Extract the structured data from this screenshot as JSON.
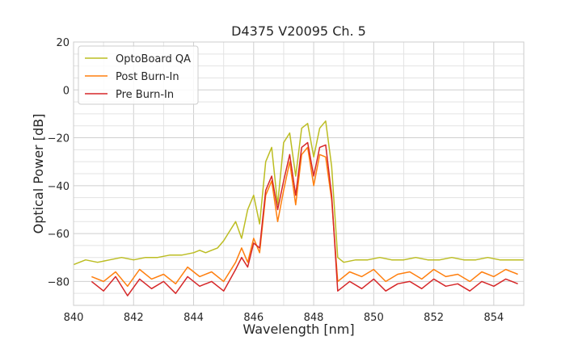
{
  "chart_data": {
    "type": "line",
    "title": "D4375 V20095 Ch. 5",
    "xlabel": "Wavelength [nm]",
    "ylabel": "Optical Power [dB]",
    "xlim": [
      840,
      855
    ],
    "ylim": [
      -90,
      20
    ],
    "xticks": [
      840,
      842,
      844,
      846,
      848,
      850,
      852,
      854
    ],
    "yticks": [
      -80,
      -60,
      -40,
      -20,
      0,
      20
    ],
    "xtick_labels": [
      "840",
      "842",
      "844",
      "846",
      "848",
      "850",
      "852",
      "854"
    ],
    "ytick_labels": [
      "−80",
      "−60",
      "−40",
      "−20",
      "0",
      "20"
    ],
    "grid": true,
    "legend_position": "top-left",
    "series": [
      {
        "name": "OptoBoard QA",
        "color": "#bcbd22",
        "x": [
          840.0,
          840.4,
          840.8,
          841.2,
          841.6,
          842.0,
          842.4,
          842.8,
          843.2,
          843.6,
          844.0,
          844.2,
          844.4,
          844.6,
          844.8,
          845.0,
          845.2,
          845.4,
          845.6,
          845.8,
          846.0,
          846.2,
          846.4,
          846.6,
          846.8,
          847.0,
          847.2,
          847.4,
          847.6,
          847.8,
          848.0,
          848.2,
          848.4,
          848.6,
          848.8,
          849.0,
          849.4,
          849.8,
          850.2,
          850.6,
          851.0,
          851.4,
          851.8,
          852.2,
          852.6,
          853.0,
          853.4,
          853.8,
          854.2,
          854.6,
          855.0
        ],
        "y": [
          -73,
          -71,
          -72,
          -71,
          -70,
          -71,
          -70,
          -70,
          -69,
          -69,
          -68,
          -67,
          -68,
          -67,
          -66,
          -63,
          -59,
          -55,
          -62,
          -50,
          -44,
          -56,
          -30,
          -24,
          -48,
          -22,
          -18,
          -36,
          -16,
          -14,
          -28,
          -16,
          -13,
          -32,
          -70,
          -72,
          -71,
          -71,
          -70,
          -71,
          -71,
          -70,
          -71,
          -71,
          -70,
          -71,
          -71,
          -70,
          -71,
          -71,
          -71
        ]
      },
      {
        "name": "Post Burn-In",
        "color": "#ff7f0e",
        "x": [
          840.6,
          841.0,
          841.4,
          841.8,
          842.2,
          842.6,
          843.0,
          843.4,
          843.8,
          844.2,
          844.6,
          845.0,
          845.4,
          845.6,
          845.8,
          846.0,
          846.2,
          846.4,
          846.6,
          846.8,
          847.0,
          847.2,
          847.4,
          847.6,
          847.8,
          848.0,
          848.2,
          848.4,
          848.6,
          848.8,
          849.2,
          849.6,
          850.0,
          850.4,
          850.8,
          851.2,
          851.6,
          852.0,
          852.4,
          852.8,
          853.2,
          853.6,
          854.0,
          854.4,
          854.8
        ],
        "y": [
          -78,
          -80,
          -76,
          -82,
          -75,
          -79,
          -77,
          -81,
          -74,
          -78,
          -76,
          -80,
          -72,
          -66,
          -72,
          -62,
          -68,
          -44,
          -38,
          -55,
          -42,
          -30,
          -48,
          -27,
          -24,
          -40,
          -27,
          -28,
          -46,
          -80,
          -76,
          -78,
          -75,
          -80,
          -77,
          -76,
          -79,
          -75,
          -78,
          -77,
          -80,
          -76,
          -78,
          -75,
          -77
        ]
      },
      {
        "name": "Pre Burn-In",
        "color": "#d62728",
        "x": [
          840.6,
          841.0,
          841.4,
          841.8,
          842.2,
          842.6,
          843.0,
          843.4,
          843.8,
          844.2,
          844.6,
          845.0,
          845.4,
          845.6,
          845.8,
          846.0,
          846.2,
          846.4,
          846.6,
          846.8,
          847.0,
          847.2,
          847.4,
          847.6,
          847.8,
          848.0,
          848.2,
          848.4,
          848.6,
          848.8,
          849.2,
          849.6,
          850.0,
          850.4,
          850.8,
          851.2,
          851.6,
          852.0,
          852.4,
          852.8,
          853.2,
          853.6,
          854.0,
          854.4,
          854.8
        ],
        "y": [
          -80,
          -84,
          -78,
          -86,
          -79,
          -83,
          -80,
          -85,
          -78,
          -82,
          -80,
          -84,
          -75,
          -70,
          -74,
          -64,
          -66,
          -42,
          -36,
          -50,
          -38,
          -27,
          -44,
          -24,
          -22,
          -36,
          -24,
          -23,
          -44,
          -84,
          -80,
          -83,
          -79,
          -84,
          -81,
          -80,
          -83,
          -79,
          -82,
          -81,
          -84,
          -80,
          -82,
          -79,
          -81
        ]
      }
    ]
  }
}
